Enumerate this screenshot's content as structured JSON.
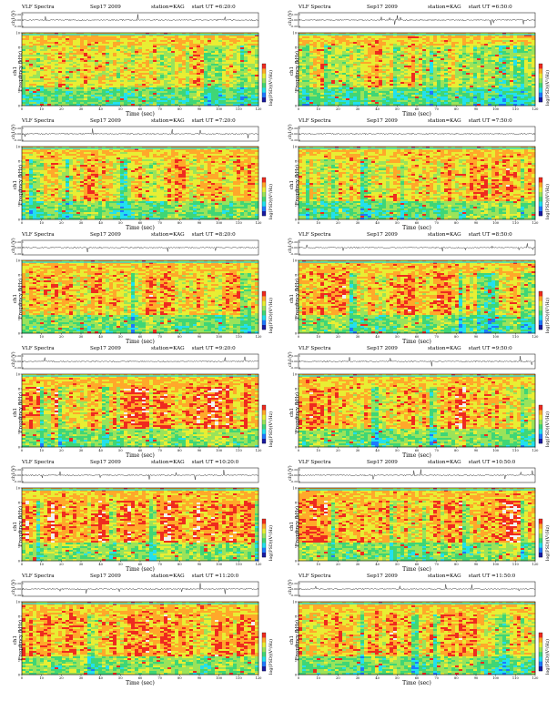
{
  "colors": {
    "spectrogram_palette": [
      "#1a1aa0",
      "#1e78ff",
      "#22e0ee",
      "#3fd676",
      "#9ae35a",
      "#e8ee33",
      "#ffa82a",
      "#ef2a1f",
      "#f2f2f2"
    ],
    "trace": "#000000",
    "band_edge": "#10dde8"
  },
  "labels": {
    "top_ylabel": "ch1(V)",
    "ylabel_channel": "ch1",
    "ylabel": "Frequency (kHz)",
    "xlabel": "Time (sec)",
    "colorbar_label": "log(PSD)(V²/Hz)"
  },
  "chart_data": [
    {
      "type": "heatmap",
      "title": "VLF Spectra",
      "date": "Sep17 2009",
      "station": "station=KAG",
      "start": "start UT =6:20:0",
      "xlabel": "Time (sec)",
      "ylabel": "Frequency (kHz)",
      "top_ylabel": "ch1(V)",
      "xlim": [
        0,
        120
      ],
      "ylim": [
        0,
        10
      ],
      "x_ticks": [
        0,
        10,
        20,
        30,
        40,
        50,
        60,
        70,
        80,
        90,
        100,
        110,
        120
      ],
      "y_ticks": [
        0,
        2,
        4,
        6,
        8,
        10
      ],
      "trace_ticks": [
        "0.20",
        "0.00",
        "-0.20"
      ],
      "colorbar_ticks": [],
      "activity": 0.45
    },
    {
      "type": "heatmap",
      "title": "VLF Spectra",
      "date": "Sep17 2009",
      "station": "station=KAG",
      "start": "start UT =6:50:0",
      "xlabel": "Time (sec)",
      "ylabel": "Frequency (kHz)",
      "top_ylabel": "ch1(V)",
      "xlim": [
        0,
        120
      ],
      "ylim": [
        0,
        10
      ],
      "x_ticks": [
        0,
        10,
        20,
        30,
        40,
        50,
        60,
        70,
        80,
        90,
        100,
        110,
        120
      ],
      "y_ticks": [
        0,
        2,
        4,
        6,
        8,
        10
      ],
      "trace_ticks": [
        "0.20",
        "0.00",
        "-0.20"
      ],
      "colorbar_ticks": [],
      "activity": 0.42
    },
    {
      "type": "heatmap",
      "title": "VLF Spectra",
      "date": "Sep17 2009",
      "station": "station=KAG",
      "start": "start UT =7:20:0",
      "xlabel": "Time (sec)",
      "ylabel": "Frequency (kHz)",
      "top_ylabel": "ch1(V)",
      "xlim": [
        0,
        120
      ],
      "ylim": [
        0,
        10
      ],
      "x_ticks": [
        0,
        10,
        20,
        30,
        40,
        50,
        60,
        70,
        80,
        90,
        100,
        110,
        120
      ],
      "y_ticks": [
        0,
        2,
        4,
        6,
        8,
        10
      ],
      "trace_ticks": [
        "0.20",
        "0.00",
        "-0.20"
      ],
      "colorbar_ticks": [],
      "activity": 0.55
    },
    {
      "type": "heatmap",
      "title": "VLF Spectra",
      "date": "Sep17 2009",
      "station": "station=KAG",
      "start": "start UT =7:50:0",
      "xlabel": "Time (sec)",
      "ylabel": "Frequency (kHz)",
      "top_ylabel": "ch1(V)",
      "xlim": [
        0,
        120
      ],
      "ylim": [
        0,
        10
      ],
      "x_ticks": [
        0,
        10,
        20,
        30,
        40,
        50,
        60,
        70,
        80,
        90,
        100,
        110,
        120
      ],
      "y_ticks": [
        0,
        2,
        4,
        6,
        8,
        10
      ],
      "trace_ticks": [
        "0.20",
        "0.00",
        "-0.20"
      ],
      "colorbar_ticks": [],
      "activity": 0.6
    },
    {
      "type": "heatmap",
      "title": "VLF Spectra",
      "date": "Sep17 2009",
      "station": "station=KAG",
      "start": "start UT =8:20:0",
      "xlabel": "Time (sec)",
      "ylabel": "Frequency (kHz)",
      "top_ylabel": "ch1(V)",
      "xlim": [
        0,
        120
      ],
      "ylim": [
        0,
        10
      ],
      "x_ticks": [
        0,
        10,
        20,
        30,
        40,
        50,
        60,
        70,
        80,
        90,
        100,
        110,
        120
      ],
      "y_ticks": [
        0,
        2,
        4,
        6,
        8,
        10
      ],
      "trace_ticks": [
        "0.20",
        "0.00",
        "-0.20"
      ],
      "colorbar_ticks": [],
      "activity": 0.62
    },
    {
      "type": "heatmap",
      "title": "VLF Spectra",
      "date": "Sep17 2009",
      "station": "station=KAG",
      "start": "start UT =8:50:0",
      "xlabel": "Time (sec)",
      "ylabel": "Frequency (kHz)",
      "top_ylabel": "ch1(V)",
      "xlim": [
        0,
        120
      ],
      "ylim": [
        0,
        10
      ],
      "x_ticks": [
        0,
        10,
        20,
        30,
        40,
        50,
        60,
        70,
        80,
        90,
        100,
        110,
        120
      ],
      "y_ticks": [
        0,
        2,
        4,
        6,
        8,
        10
      ],
      "trace_ticks": [
        "0.20",
        "0.00",
        "-0.20"
      ],
      "colorbar_ticks": [],
      "activity": 0.6
    },
    {
      "type": "heatmap",
      "title": "VLF Spectra",
      "date": "Sep17 2009",
      "station": "station=KAG",
      "start": "start UT =9:20:0",
      "xlabel": "Time (sec)",
      "ylabel": "Frequency (kHz)",
      "top_ylabel": "ch1(V)",
      "xlim": [
        0,
        120
      ],
      "ylim": [
        0,
        10
      ],
      "x_ticks": [
        0,
        10,
        20,
        30,
        40,
        50,
        60,
        70,
        80,
        90,
        100,
        110,
        120
      ],
      "y_ticks": [
        0,
        2,
        4,
        6,
        8,
        10
      ],
      "trace_ticks": [
        "0.20",
        "0.00",
        "-0.20"
      ],
      "colorbar_ticks": [],
      "activity": 0.7
    },
    {
      "type": "heatmap",
      "title": "VLF Spectra",
      "date": "Sep17 2009",
      "station": "station=KAG",
      "start": "start UT =9:50:0",
      "xlabel": "Time (sec)",
      "ylabel": "Frequency (kHz)",
      "top_ylabel": "ch1(V)",
      "xlim": [
        0,
        120
      ],
      "ylim": [
        0,
        10
      ],
      "x_ticks": [
        0,
        10,
        20,
        30,
        40,
        50,
        60,
        70,
        80,
        90,
        100,
        110,
        120
      ],
      "y_ticks": [
        0,
        2,
        4,
        6,
        8,
        10
      ],
      "trace_ticks": [
        "0.20",
        "0.00",
        "-0.20"
      ],
      "colorbar_ticks": [],
      "activity": 0.68
    },
    {
      "type": "heatmap",
      "title": "VLF Spectra",
      "date": "Sep17 2009",
      "station": "station=KAG",
      "start": "start UT =10:20:0",
      "xlabel": "Time (sec)",
      "ylabel": "Frequency (kHz)",
      "top_ylabel": "ch1(V)",
      "xlim": [
        0,
        120
      ],
      "ylim": [
        0,
        10
      ],
      "x_ticks": [
        0,
        10,
        20,
        30,
        40,
        50,
        60,
        70,
        80,
        90,
        100,
        110,
        120
      ],
      "y_ticks": [
        0,
        2,
        4,
        6,
        8,
        10
      ],
      "trace_ticks": [
        "0.20",
        "0.00",
        "-0.20"
      ],
      "colorbar_ticks": [],
      "activity": 0.72
    },
    {
      "type": "heatmap",
      "title": "VLF Spectra",
      "date": "Sep17 2009",
      "station": "station=KAG",
      "start": "start UT =10:50:0",
      "xlabel": "Time (sec)",
      "ylabel": "Frequency (kHz)",
      "top_ylabel": "ch1(V)",
      "xlim": [
        0,
        120
      ],
      "ylim": [
        0,
        10
      ],
      "x_ticks": [
        0,
        10,
        20,
        30,
        40,
        50,
        60,
        70,
        80,
        90,
        100,
        110,
        120
      ],
      "y_ticks": [
        0,
        2,
        4,
        6,
        8,
        10
      ],
      "trace_ticks": [
        "0.20",
        "0.00",
        "-0.20"
      ],
      "colorbar_ticks": [],
      "activity": 0.72
    },
    {
      "type": "heatmap",
      "title": "VLF Spectra",
      "date": "Sep17 2009",
      "station": "station=KAG",
      "start": "start UT =11:20:0",
      "xlabel": "Time (sec)",
      "ylabel": "Frequency (kHz)",
      "top_ylabel": "ch1(V)",
      "xlim": [
        0,
        120
      ],
      "ylim": [
        0,
        10
      ],
      "x_ticks": [
        0,
        10,
        20,
        30,
        40,
        50,
        60,
        70,
        80,
        90,
        100,
        110,
        120
      ],
      "y_ticks": [
        0,
        2,
        4,
        6,
        8,
        10
      ],
      "trace_ticks": [
        "0.20",
        "0.00",
        "-0.20"
      ],
      "colorbar_ticks": [],
      "activity": 0.65
    },
    {
      "type": "heatmap",
      "title": "VLF Spectra",
      "date": "Sep17 2009",
      "station": "station=KAG",
      "start": "start UT =11:50:0",
      "xlabel": "Time (sec)",
      "ylabel": "Frequency (kHz)",
      "top_ylabel": "ch1(V)",
      "xlim": [
        0,
        120
      ],
      "ylim": [
        0,
        10
      ],
      "x_ticks": [
        0,
        10,
        20,
        30,
        40,
        50,
        60,
        70,
        80,
        90,
        100,
        110,
        120
      ],
      "y_ticks": [
        0,
        2,
        4,
        6,
        8,
        10
      ],
      "trace_ticks": [
        "0.20",
        "0.00",
        "-0.20"
      ],
      "colorbar_ticks": [],
      "activity": 0.66
    }
  ]
}
